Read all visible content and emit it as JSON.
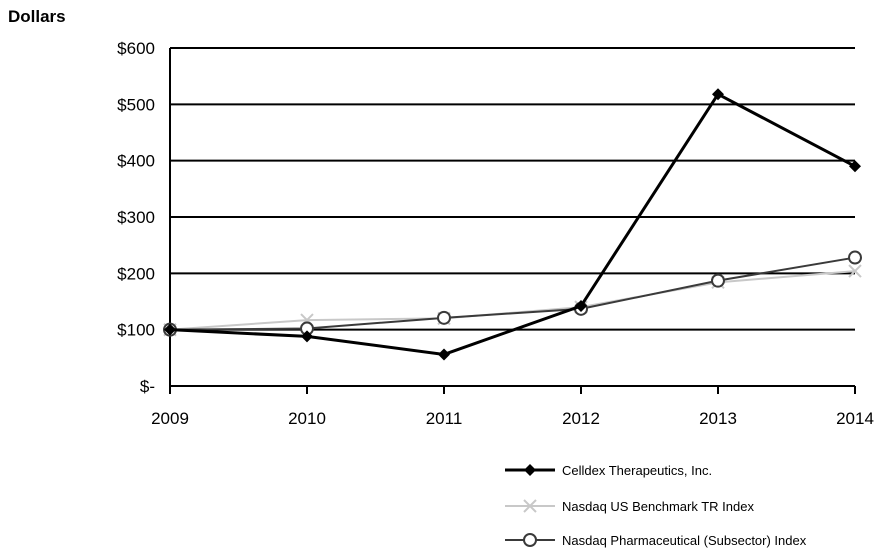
{
  "chart_data": {
    "type": "line",
    "ylabel": "Dollars",
    "xlabel": "",
    "x": [
      "2009",
      "2010",
      "2011",
      "2012",
      "2013",
      "2014"
    ],
    "ylim": [
      0,
      600
    ],
    "yticks": [
      0,
      100,
      200,
      300,
      400,
      500,
      600
    ],
    "ytick_labels": [
      "$-",
      "$100",
      "$200",
      "$300",
      "$400",
      "$500",
      "$600"
    ],
    "grid": true,
    "legend_position": "bottom-right",
    "series": [
      {
        "name": "Celldex Therapeutics, Inc.",
        "values": [
          100,
          88,
          56,
          142,
          518,
          390
        ],
        "color": "#000000",
        "marker": "diamond"
      },
      {
        "name": "Nasdaq US Benchmark TR Index",
        "values": [
          100,
          117,
          120,
          140,
          184,
          204
        ],
        "color": "#c8c8c8",
        "marker": "x"
      },
      {
        "name": "Nasdaq Pharmaceutical (Subsector) Index",
        "values": [
          100,
          102,
          121,
          137,
          187,
          228
        ],
        "color": "#3a3a3a",
        "marker": "circle"
      }
    ]
  }
}
